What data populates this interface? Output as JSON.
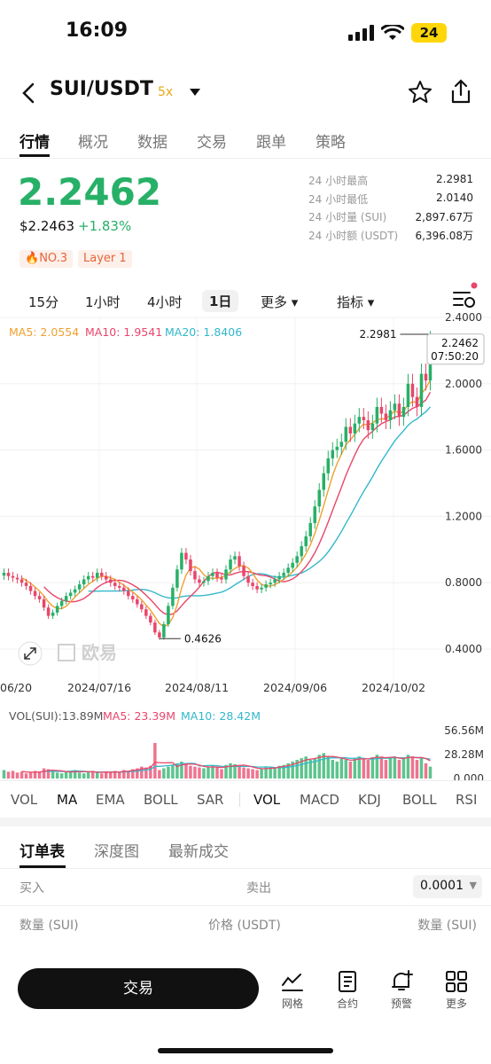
{
  "status": {
    "time": "16:09",
    "battery": "24"
  },
  "header": {
    "pair": "SUI/USDT",
    "leverage": "5x"
  },
  "tabs": [
    "行情",
    "概况",
    "数据",
    "交易",
    "跟单",
    "策略"
  ],
  "price": {
    "last": "2.2462",
    "usd": "$2.2463",
    "change": "+1.83%",
    "rank": "NO.3",
    "tag": "Layer 1"
  },
  "stats": [
    {
      "label": "24 小时最高",
      "value": "2.2981"
    },
    {
      "label": "24 小时最低",
      "value": "2.0140"
    },
    {
      "label": "24 小时量 (SUI)",
      "value": "2,897.67万"
    },
    {
      "label": "24 小时额 (USDT)",
      "value": "6,396.08万"
    }
  ],
  "intervals": {
    "i15m": "15分",
    "i1h": "1小时",
    "i4h": "4小时",
    "i1d": "1日",
    "more": "更多",
    "indicator": "指标"
  },
  "ma_legend": {
    "ma5": "MA5: 2.0554",
    "ma10": "MA10: 1.9541",
    "ma20": "MA20: 1.8406"
  },
  "colors": {
    "up": "#27b067",
    "down": "#e8466a",
    "ma5": "#f0a030",
    "ma10": "#e8466a",
    "ma20": "#33b8cc"
  },
  "chart_data": {
    "type": "candlestick",
    "y_axis": [
      "2.4000",
      "2.0000",
      "1.6000",
      "1.2000",
      "0.8000",
      "0.4000"
    ],
    "ylim": [
      0.4,
      2.4
    ],
    "x_ticks": [
      "06/20",
      "2024/07/16",
      "2024/08/11",
      "2024/09/06",
      "2024/10/02"
    ],
    "high_label": "2.2981",
    "low_label": "0.4626",
    "current_price": "2.2462",
    "countdown": "07:50:20",
    "watermark": "欧易",
    "closes": [
      0.86,
      0.84,
      0.83,
      0.82,
      0.8,
      0.78,
      0.75,
      0.72,
      0.7,
      0.65,
      0.6,
      0.62,
      0.66,
      0.69,
      0.72,
      0.74,
      0.76,
      0.79,
      0.82,
      0.84,
      0.83,
      0.86,
      0.84,
      0.82,
      0.8,
      0.78,
      0.77,
      0.75,
      0.72,
      0.7,
      0.67,
      0.64,
      0.6,
      0.56,
      0.5,
      0.47,
      0.55,
      0.66,
      0.77,
      0.88,
      0.98,
      0.94,
      0.87,
      0.82,
      0.8,
      0.81,
      0.84,
      0.86,
      0.83,
      0.82,
      0.88,
      0.94,
      0.96,
      0.9,
      0.84,
      0.8,
      0.78,
      0.76,
      0.77,
      0.79,
      0.8,
      0.82,
      0.84,
      0.86,
      0.89,
      0.92,
      0.96,
      1.02,
      1.08,
      1.16,
      1.26,
      1.36,
      1.46,
      1.55,
      1.6,
      1.62,
      1.65,
      1.74,
      1.7,
      1.76,
      1.8,
      1.78,
      1.72,
      1.76,
      1.86,
      1.82,
      1.78,
      1.84,
      1.88,
      1.8,
      1.86,
      2.0,
      1.92,
      1.86,
      2.06,
      2.02,
      2.25
    ],
    "vol_legend": {
      "vol": "VOL(SUI):13.89M",
      "ma5": "MA5: 23.39M",
      "ma10": "MA10: 28.42M"
    },
    "vol_axis": [
      "56.56M",
      "28.28M",
      "0.000"
    ],
    "volumes": [
      10,
      8,
      9,
      7,
      8,
      6,
      7,
      9,
      8,
      12,
      11,
      9,
      7,
      6,
      8,
      9,
      10,
      7,
      6,
      8,
      9,
      7,
      6,
      8,
      7,
      9,
      8,
      10,
      9,
      11,
      12,
      14,
      13,
      15,
      42,
      10,
      12,
      14,
      16,
      18,
      20,
      17,
      15,
      14,
      13,
      12,
      14,
      15,
      13,
      11,
      16,
      18,
      17,
      15,
      13,
      12,
      11,
      10,
      12,
      13,
      14,
      13,
      15,
      16,
      18,
      20,
      22,
      24,
      26,
      22,
      24,
      28,
      30,
      26,
      22,
      20,
      24,
      22,
      20,
      24,
      26,
      24,
      22,
      25,
      28,
      26,
      22,
      24,
      26,
      22,
      24,
      28,
      26,
      22,
      24,
      18,
      14
    ]
  },
  "indicators_main": [
    "VOL",
    "MA",
    "EMA",
    "BOLL",
    "SAR"
  ],
  "indicators_sub": [
    "VOL",
    "MACD",
    "KDJ",
    "BOLL",
    "RSI"
  ],
  "orderbook": {
    "tabs": [
      "订单表",
      "深度图",
      "最新成交"
    ],
    "buy": "买入",
    "sell": "卖出",
    "precision": "0.0001",
    "qty_left": "数量 (SUI)",
    "price_col": "价格 (USDT)",
    "qty_right": "数量 (SUI)"
  },
  "bottom": {
    "trade": "交易",
    "grid": "网格",
    "contract": "合约",
    "alert": "预警",
    "more": "更多"
  }
}
